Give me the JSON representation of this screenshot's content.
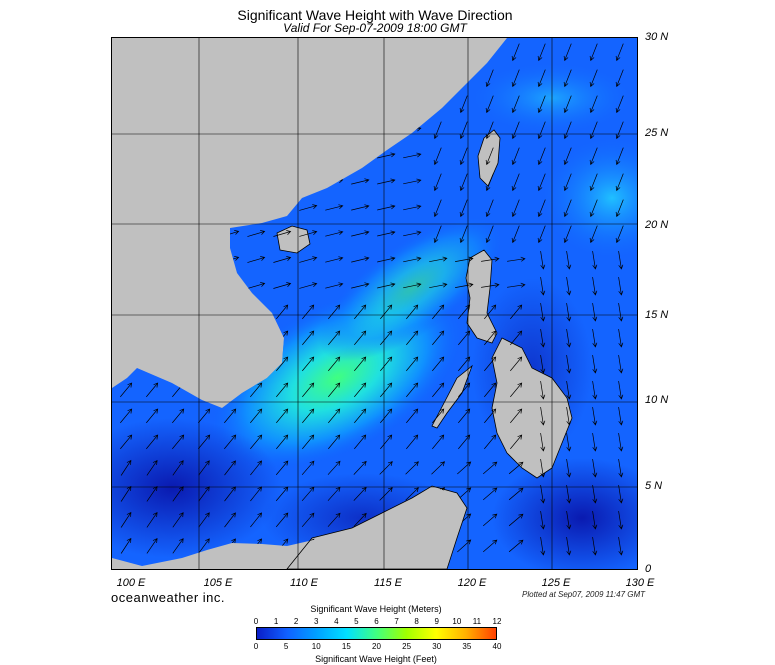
{
  "map": {
    "title": "Significant Wave Height with Wave Direction",
    "subtitle": "Valid For Sep-07-2009 18:00 GMT",
    "brand": "oceanweather inc.",
    "plotted_at": "Plotted at Sep07, 2009 11:47 GMT",
    "lat_labels": [
      "30 N",
      "25 N",
      "20 N",
      "15 N",
      "10 N",
      "5 N",
      "0"
    ],
    "lon_labels": [
      "100 E",
      "105 E",
      "110 E",
      "115 E",
      "120 E",
      "125 E",
      "130 E"
    ],
    "extent": {
      "lon_min": 100,
      "lon_max": 130,
      "lat_min": 0,
      "lat_max": 30
    },
    "colors": {
      "land": "#c0c0c0",
      "water_deep": "#0a20c8",
      "water_mid": "#1a6cff",
      "grid": "#000000"
    }
  },
  "legend": {
    "title_meters": "Significant Wave Height (Meters)",
    "title_feet": "Significant Wave Height (Feet)",
    "meter_ticks": [
      "0",
      "1",
      "2",
      "3",
      "4",
      "5",
      "6",
      "7",
      "8",
      "9",
      "10",
      "11",
      "12"
    ],
    "feet_ticks": [
      "0",
      "5",
      "10",
      "15",
      "20",
      "25",
      "30",
      "35",
      "40"
    ],
    "colors": [
      "#0a1ec8",
      "#1060ff",
      "#00a0ff",
      "#00e0ff",
      "#40ff80",
      "#a0ff00",
      "#ffff00",
      "#ffb000",
      "#ff4000"
    ]
  }
}
